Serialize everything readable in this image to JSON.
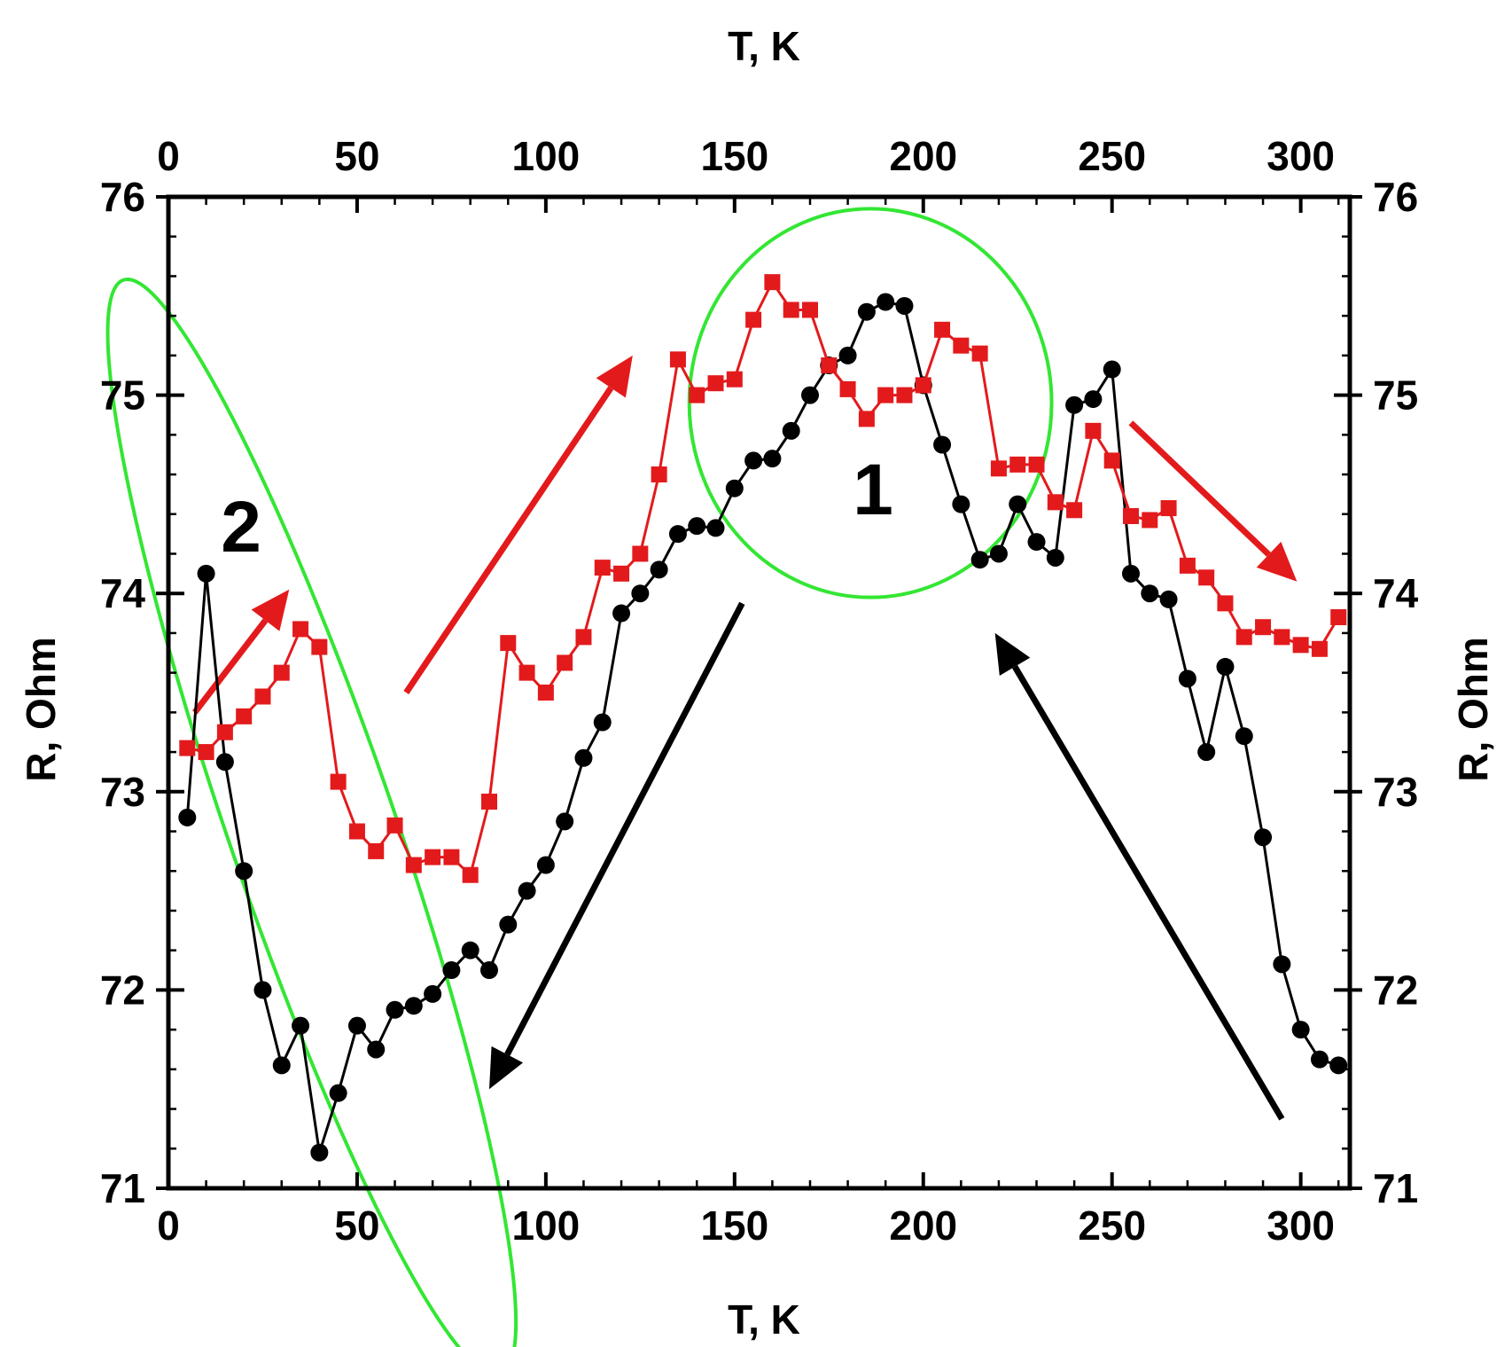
{
  "chart_data": {
    "type": "line",
    "xlabel_top": "T, K",
    "xlabel_bottom": "T, K",
    "ylabel_left": "R, Ohm",
    "ylabel_right": "R, Ohm",
    "xlim": [
      0,
      313
    ],
    "ylim": [
      71,
      76
    ],
    "xticks": [
      0,
      50,
      100,
      150,
      200,
      250,
      300
    ],
    "yticks": [
      71,
      72,
      73,
      74,
      75,
      76
    ],
    "grid": false,
    "legend": "none",
    "annotations": [
      "1",
      "2"
    ],
    "series": [
      {
        "color": "#000000",
        "marker": "circle",
        "x": [
          5,
          10,
          15,
          20,
          25,
          30,
          35,
          40,
          45,
          50,
          55,
          60,
          65,
          70,
          75,
          80,
          85,
          90,
          95,
          100,
          105,
          110,
          115,
          120,
          125,
          130,
          135,
          140,
          145,
          150,
          155,
          160,
          165,
          170,
          175,
          180,
          185,
          190,
          195,
          200,
          205,
          210,
          215,
          220,
          225,
          230,
          235,
          240,
          245,
          250,
          255,
          260,
          265,
          270,
          275,
          280,
          285,
          290,
          295,
          300,
          305,
          310
        ],
        "y": [
          72.87,
          74.1,
          73.15,
          72.6,
          72.0,
          71.62,
          71.82,
          71.18,
          71.48,
          71.82,
          71.7,
          71.9,
          71.92,
          71.98,
          72.1,
          72.2,
          72.1,
          72.33,
          72.5,
          72.63,
          72.85,
          73.17,
          73.35,
          73.9,
          74.0,
          74.12,
          74.3,
          74.34,
          74.33,
          74.53,
          74.67,
          74.68,
          74.82,
          75.0,
          75.15,
          75.2,
          75.42,
          75.47,
          75.45,
          75.05,
          74.75,
          74.45,
          74.17,
          74.2,
          74.45,
          74.26,
          74.18,
          74.95,
          74.98,
          75.13,
          74.1,
          74.0,
          73.97,
          73.57,
          73.2,
          73.63,
          73.28,
          72.77,
          72.13,
          71.8,
          71.65,
          71.62
        ]
      },
      {
        "color": "#e31a1c",
        "marker": "square",
        "x": [
          5,
          10,
          15,
          20,
          25,
          30,
          35,
          40,
          45,
          50,
          55,
          60,
          65,
          70,
          75,
          80,
          85,
          90,
          95,
          100,
          105,
          110,
          115,
          120,
          125,
          130,
          135,
          140,
          145,
          150,
          155,
          160,
          165,
          170,
          175,
          180,
          185,
          190,
          195,
          200,
          205,
          210,
          215,
          220,
          225,
          230,
          235,
          240,
          245,
          250,
          255,
          260,
          265,
          270,
          275,
          280,
          285,
          290,
          295,
          300,
          305,
          310
        ],
        "y": [
          73.22,
          73.2,
          73.3,
          73.38,
          73.48,
          73.6,
          73.82,
          73.73,
          73.05,
          72.8,
          72.7,
          72.83,
          72.63,
          72.67,
          72.67,
          72.58,
          72.95,
          73.75,
          73.6,
          73.5,
          73.65,
          73.78,
          74.13,
          74.1,
          74.2,
          74.6,
          75.18,
          75.0,
          75.06,
          75.08,
          75.38,
          75.57,
          75.43,
          75.43,
          75.15,
          75.03,
          74.88,
          75.0,
          75.0,
          75.05,
          75.33,
          75.25,
          75.21,
          74.63,
          74.65,
          74.65,
          74.46,
          74.42,
          74.82,
          74.67,
          74.39,
          74.37,
          74.43,
          74.14,
          74.08,
          73.95,
          73.78,
          73.83,
          73.78,
          73.74,
          73.72,
          73.88
        ]
      }
    ]
  }
}
